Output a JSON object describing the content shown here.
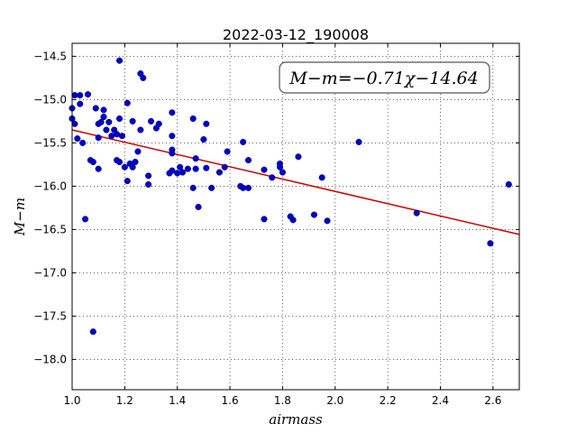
{
  "chart_data": {
    "type": "scatter",
    "title": "2022-03-12_190008",
    "xlabel": "airmass",
    "ylabel": "M−m",
    "annotation": "M−m=−0.71χ−14.64",
    "xlim": [
      1.0,
      2.7
    ],
    "ylim": [
      -18.35,
      -14.35
    ],
    "y_inverted": true,
    "grid": true,
    "xticks": [
      1.0,
      1.2,
      1.4,
      1.6,
      1.8,
      2.0,
      2.2,
      2.4,
      2.6
    ],
    "xtick_labels": [
      "1.0",
      "1.2",
      "1.4",
      "1.6",
      "1.8",
      "2.0",
      "2.2",
      "2.4",
      "2.6"
    ],
    "yticks": [
      -14.5,
      -15.0,
      -15.5,
      -16.0,
      -16.5,
      -17.0,
      -17.5,
      -18.0
    ],
    "ytick_labels": [
      "−14.5",
      "−15.0",
      "−15.5",
      "−16.0",
      "−16.5",
      "−17.0",
      "−17.5",
      "−18.0"
    ],
    "fit": {
      "slope": -0.71,
      "intercept": -14.64,
      "color": "#cc0000"
    },
    "point_color": "#0000cc",
    "points": [
      [
        1.0,
        -15.1
      ],
      [
        1.0,
        -15.22
      ],
      [
        1.01,
        -15.28
      ],
      [
        1.01,
        -14.95
      ],
      [
        1.02,
        -15.45
      ],
      [
        1.03,
        -14.95
      ],
      [
        1.03,
        -15.05
      ],
      [
        1.04,
        -15.5
      ],
      [
        1.05,
        -16.38
      ],
      [
        1.06,
        -14.94
      ],
      [
        1.07,
        -15.7
      ],
      [
        1.08,
        -15.72
      ],
      [
        1.08,
        -17.68
      ],
      [
        1.09,
        -15.1
      ],
      [
        1.1,
        -15.44
      ],
      [
        1.1,
        -15.28
      ],
      [
        1.1,
        -15.8
      ],
      [
        1.11,
        -15.26
      ],
      [
        1.12,
        -15.12
      ],
      [
        1.12,
        -15.2
      ],
      [
        1.13,
        -15.35
      ],
      [
        1.14,
        -15.26
      ],
      [
        1.15,
        -15.42
      ],
      [
        1.16,
        -15.35
      ],
      [
        1.17,
        -15.4
      ],
      [
        1.17,
        -15.7
      ],
      [
        1.18,
        -15.22
      ],
      [
        1.18,
        -15.72
      ],
      [
        1.18,
        -14.55
      ],
      [
        1.19,
        -15.42
      ],
      [
        1.2,
        -15.78
      ],
      [
        1.21,
        -15.04
      ],
      [
        1.21,
        -15.94
      ],
      [
        1.22,
        -15.74
      ],
      [
        1.23,
        -15.25
      ],
      [
        1.23,
        -15.78
      ],
      [
        1.24,
        -15.72
      ],
      [
        1.25,
        -15.6
      ],
      [
        1.26,
        -15.35
      ],
      [
        1.26,
        -14.7
      ],
      [
        1.27,
        -14.75
      ],
      [
        1.29,
        -15.98
      ],
      [
        1.29,
        -15.88
      ],
      [
        1.3,
        -15.25
      ],
      [
        1.32,
        -15.33
      ],
      [
        1.33,
        -15.28
      ],
      [
        1.37,
        -15.85
      ],
      [
        1.38,
        -15.82
      ],
      [
        1.38,
        -15.58
      ],
      [
        1.38,
        -15.42
      ],
      [
        1.38,
        -15.15
      ],
      [
        1.38,
        -15.62
      ],
      [
        1.4,
        -15.85
      ],
      [
        1.41,
        -15.78
      ],
      [
        1.42,
        -15.84
      ],
      [
        1.44,
        -15.8
      ],
      [
        1.46,
        -15.22
      ],
      [
        1.46,
        -16.02
      ],
      [
        1.47,
        -15.8
      ],
      [
        1.47,
        -15.68
      ],
      [
        1.48,
        -16.24
      ],
      [
        1.5,
        -15.46
      ],
      [
        1.51,
        -15.28
      ],
      [
        1.51,
        -15.79
      ],
      [
        1.53,
        -16.02
      ],
      [
        1.56,
        -15.84
      ],
      [
        1.58,
        -15.78
      ],
      [
        1.59,
        -15.6
      ],
      [
        1.64,
        -16.0
      ],
      [
        1.65,
        -15.49
      ],
      [
        1.65,
        -16.02
      ],
      [
        1.67,
        -15.7
      ],
      [
        1.67,
        -16.02
      ],
      [
        1.73,
        -15.81
      ],
      [
        1.73,
        -16.38
      ],
      [
        1.76,
        -15.9
      ],
      [
        1.79,
        -15.74
      ],
      [
        1.79,
        -15.78
      ],
      [
        1.8,
        -15.84
      ],
      [
        1.83,
        -16.35
      ],
      [
        1.84,
        -16.39
      ],
      [
        1.86,
        -15.66
      ],
      [
        1.92,
        -16.33
      ],
      [
        1.95,
        -15.9
      ],
      [
        1.97,
        -16.4
      ],
      [
        2.09,
        -15.49
      ],
      [
        2.31,
        -16.31
      ],
      [
        2.59,
        -16.66
      ],
      [
        2.66,
        -15.98
      ]
    ]
  }
}
